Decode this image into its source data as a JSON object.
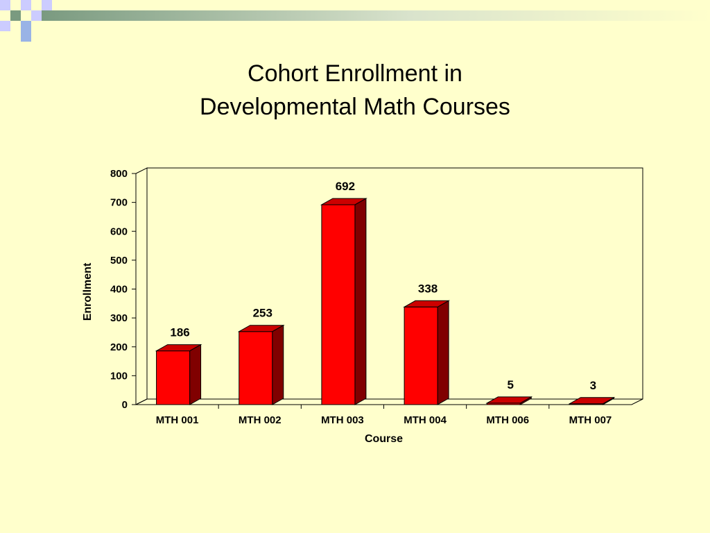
{
  "colors": {
    "background": "#ffffcc",
    "bar_front": "#ff0000",
    "bar_top": "#cc0000",
    "bar_side": "#800000",
    "deco_green": "#7a9a80",
    "deco_lavender": "#ccccff",
    "deco_blue": "#99b3e6"
  },
  "chart_data": {
    "type": "bar",
    "title_lines": [
      "Cohort Enrollment in",
      "Developmental Math Courses"
    ],
    "xlabel": "Course",
    "ylabel": "Enrollment",
    "categories": [
      "MTH 001",
      "MTH 002",
      "MTH 003",
      "MTH 004",
      "MTH 006",
      "MTH 007"
    ],
    "values": [
      186,
      253,
      692,
      338,
      5,
      3
    ],
    "data_labels": [
      "186",
      "253",
      "692",
      "338",
      "5",
      "3"
    ],
    "ylim": [
      0,
      800
    ],
    "yticks": [
      0,
      100,
      200,
      300,
      400,
      500,
      600,
      700,
      800
    ],
    "grid": false,
    "legend": "none",
    "style": "3d-column"
  }
}
